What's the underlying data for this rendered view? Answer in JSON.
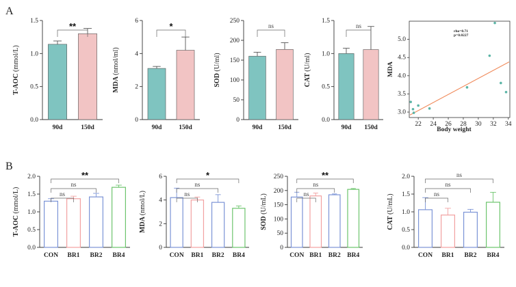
{
  "panel_labels": [
    "A",
    "B"
  ],
  "chart_data": [
    {
      "id": "a1",
      "type": "bar",
      "ylabel": "T-AOC",
      "yunit": "(mmol/L)",
      "categories": [
        "90d",
        "150d"
      ],
      "values": [
        1.14,
        1.3
      ],
      "errors": [
        0.05,
        0.08
      ],
      "colors": [
        "#7fc4c0",
        "#f2c4c4"
      ],
      "ylim": [
        0,
        1.5
      ],
      "yticks": [
        "0.0",
        "0.5",
        "1.0",
        "1.5"
      ],
      "comparisons": [
        {
          "from": 0,
          "to": 1,
          "label": "**"
        }
      ]
    },
    {
      "id": "a2",
      "type": "bar",
      "ylabel": "MDA",
      "yunit": "(nmol/ml)",
      "categories": [
        "90d",
        "150d"
      ],
      "values": [
        3.1,
        4.2
      ],
      "errors": [
        0.12,
        0.8
      ],
      "colors": [
        "#7fc4c0",
        "#f2c4c4"
      ],
      "ylim": [
        0,
        6
      ],
      "yticks": [
        "0",
        "2",
        "4",
        "6"
      ],
      "comparisons": [
        {
          "from": 0,
          "to": 1,
          "label": "*"
        }
      ]
    },
    {
      "id": "a3",
      "type": "bar",
      "ylabel": "SOD",
      "yunit": "(U/ml)",
      "categories": [
        "90d",
        "150d"
      ],
      "values": [
        160,
        177
      ],
      "errors": [
        10,
        17
      ],
      "colors": [
        "#7fc4c0",
        "#f2c4c4"
      ],
      "ylim": [
        0,
        250
      ],
      "yticks": [
        "0",
        "50",
        "100",
        "150",
        "200",
        "250"
      ],
      "comparisons": [
        {
          "from": 0,
          "to": 1,
          "label": "ns"
        }
      ]
    },
    {
      "id": "a4",
      "type": "bar",
      "ylabel": "CAT",
      "yunit": "(U/ml)",
      "categories": [
        "90d",
        "150d"
      ],
      "values": [
        1.0,
        1.06
      ],
      "errors": [
        0.08,
        0.35
      ],
      "colors": [
        "#7fc4c0",
        "#f2c4c4"
      ],
      "ylim": [
        0,
        1.5
      ],
      "yticks": [
        "0.0",
        "0.5",
        "1.0",
        "1.5"
      ],
      "comparisons": [
        {
          "from": 0,
          "to": 1,
          "label": "ns"
        }
      ]
    },
    {
      "id": "a5",
      "type": "scatter",
      "xlabel": "Body weight",
      "ylabel": "MDA",
      "xlim": [
        20.8,
        34.2
      ],
      "ylim": [
        2.85,
        5.5
      ],
      "xticks": [
        "22",
        "24",
        "26",
        "28",
        "30",
        "32",
        "34"
      ],
      "yticks": [
        "3.0",
        "3.5",
        "4.0",
        "4.5",
        "5.0"
      ],
      "x": [
        21.0,
        21.3,
        21.4,
        22.0,
        23.5,
        28.5,
        31.5,
        32.2,
        33.0,
        33.7
      ],
      "y": [
        3.28,
        3.08,
        2.98,
        3.18,
        3.1,
        3.68,
        4.55,
        5.45,
        3.8,
        3.55
      ],
      "fit": {
        "x": [
          20.9,
          34.1
        ],
        "y": [
          2.92,
          4.38
        ]
      },
      "point_color": "#5bb5a6",
      "line_color": "#f08a5a",
      "annotations": [
        "rho=0.71",
        "p=0.0227"
      ]
    },
    {
      "id": "b1",
      "type": "bar",
      "style": "outline",
      "ylabel": "T-AOC",
      "yunit": "(mmol/L)",
      "categories": [
        "CON",
        "BR1",
        "BR2",
        "BR4"
      ],
      "values": [
        1.3,
        1.37,
        1.42,
        1.69
      ],
      "errors": [
        0.07,
        0.07,
        0.1,
        0.06
      ],
      "colors": [
        "#7b93d6",
        "#f2a0a0",
        "#7b93d6",
        "#6cc46c"
      ],
      "ylim": [
        0,
        2.0
      ],
      "yticks": [
        "0.0",
        "0.5",
        "1.0",
        "1.5",
        "2.0"
      ],
      "comparisons": [
        {
          "from": 0,
          "to": 1,
          "label": "ns"
        },
        {
          "from": 0,
          "to": 2,
          "label": "ns"
        },
        {
          "from": 0,
          "to": 3,
          "label": "**"
        }
      ]
    },
    {
      "id": "b2",
      "type": "bar",
      "style": "outline",
      "ylabel": "MDA",
      "yunit": "(nmol/L)",
      "categories": [
        "CON",
        "BR1",
        "BR2",
        "BR4"
      ],
      "values": [
        4.2,
        4.0,
        3.8,
        3.3
      ],
      "errors": [
        0.8,
        0.25,
        0.65,
        0.2
      ],
      "colors": [
        "#7b93d6",
        "#f2a0a0",
        "#7b93d6",
        "#6cc46c"
      ],
      "ylim": [
        0,
        6
      ],
      "yticks": [
        "0",
        "2",
        "4",
        "6"
      ],
      "comparisons": [
        {
          "from": 0,
          "to": 1,
          "label": "ns"
        },
        {
          "from": 0,
          "to": 2,
          "label": "ns"
        },
        {
          "from": 0,
          "to": 3,
          "label": "*"
        }
      ]
    },
    {
      "id": "b3",
      "type": "bar",
      "style": "outline",
      "ylabel": "SOD",
      "yunit": "(U/mL)",
      "categories": [
        "CON",
        "BR1",
        "BR2",
        "BR4"
      ],
      "values": [
        177,
        181,
        185,
        204
      ],
      "errors": [
        17,
        10,
        3,
        3
      ],
      "colors": [
        "#7b93d6",
        "#f2a0a0",
        "#7b93d6",
        "#6cc46c"
      ],
      "ylim": [
        0,
        250
      ],
      "yticks": [
        "0",
        "50",
        "100",
        "150",
        "200",
        "250"
      ],
      "comparisons": [
        {
          "from": 0,
          "to": 1,
          "label": "ns"
        },
        {
          "from": 0,
          "to": 2,
          "label": "ns"
        },
        {
          "from": 0,
          "to": 3,
          "label": "**"
        }
      ]
    },
    {
      "id": "b4",
      "type": "bar",
      "style": "outline",
      "ylabel": "CAT",
      "yunit": "(U/mL)",
      "categories": [
        "CON",
        "BR1",
        "BR2",
        "BR4"
      ],
      "values": [
        1.06,
        0.91,
        0.99,
        1.27
      ],
      "errors": [
        0.34,
        0.19,
        0.08,
        0.28
      ],
      "colors": [
        "#7b93d6",
        "#f2a0a0",
        "#7b93d6",
        "#6cc46c"
      ],
      "ylim": [
        0,
        2.0
      ],
      "yticks": [
        "0.0",
        "0.5",
        "1.0",
        "1.5",
        "2.0"
      ],
      "comparisons": [
        {
          "from": 0,
          "to": 1,
          "label": "ns"
        },
        {
          "from": 0,
          "to": 2,
          "label": "ns"
        },
        {
          "from": 0,
          "to": 3,
          "label": "ns"
        }
      ]
    }
  ]
}
